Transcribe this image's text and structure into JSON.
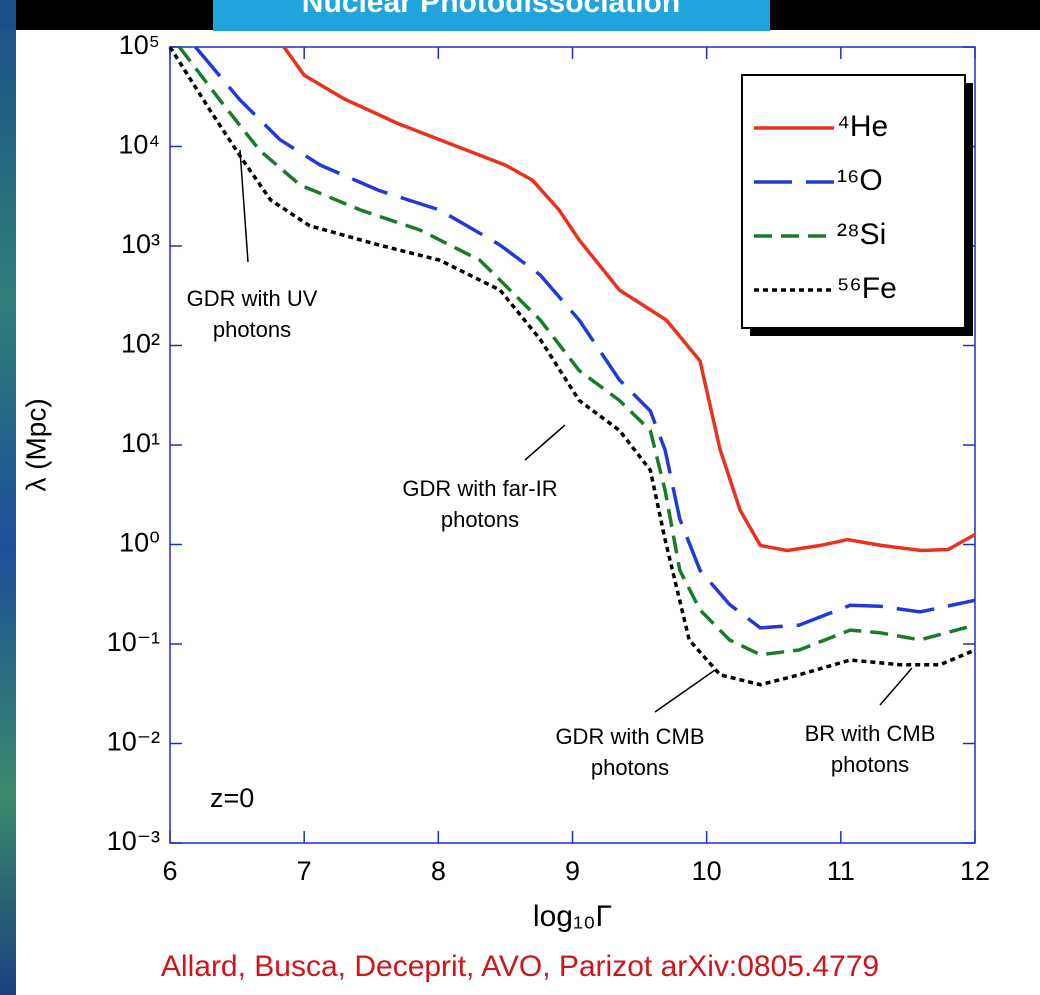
{
  "slide_title": "Nuclear Photodissociation",
  "credit": "Allard, Busca, Deceprit, AVO, Parizot arXiv:0805.4779",
  "chart_data": {
    "type": "line",
    "xlabel": "log₁₀Γ",
    "ylabel": "λ (Mpc)",
    "xlim": [
      6,
      12
    ],
    "xticks": [
      6,
      7,
      8,
      9,
      10,
      11,
      12
    ],
    "ylim": [
      0.001,
      100000
    ],
    "log_y": true,
    "yticks": [
      {
        "value": 0.001,
        "label": "10⁻³"
      },
      {
        "value": 0.01,
        "label": "10⁻²"
      },
      {
        "value": 0.1,
        "label": "10⁻¹"
      },
      {
        "value": 1,
        "label": "10⁰"
      },
      {
        "value": 10,
        "label": "10¹"
      },
      {
        "value": 100,
        "label": "10²"
      },
      {
        "value": 1000,
        "label": "10³"
      },
      {
        "value": 10000,
        "label": "10⁴"
      },
      {
        "value": 100000,
        "label": "10⁵"
      }
    ],
    "legend_position": "upper right",
    "series": [
      {
        "name": "⁴He",
        "color": "#e8321e",
        "dash": "solid",
        "x": [
          6.85,
          7.0,
          7.3,
          7.7,
          8.1,
          8.5,
          8.7,
          8.9,
          9.05,
          9.35,
          9.7,
          9.95,
          10.1,
          10.25,
          10.4,
          10.6,
          10.85,
          11.05,
          11.3,
          11.6,
          11.8,
          12.0
        ],
        "values": [
          100000,
          52000,
          30000,
          17000,
          10500,
          6500,
          4600,
          2300,
          1150,
          360,
          180,
          70,
          9,
          2.2,
          0.98,
          0.87,
          0.98,
          1.12,
          0.98,
          0.87,
          0.89,
          1.26
        ]
      },
      {
        "name": "¹⁶O",
        "color": "#2339d6",
        "dash": "long-dash",
        "x": [
          6.19,
          6.52,
          6.82,
          7.12,
          7.56,
          8.01,
          8.46,
          8.76,
          9.05,
          9.35,
          9.58,
          9.69,
          9.8,
          9.95,
          10.17,
          10.4,
          10.69,
          11.07,
          11.29,
          11.59,
          12.0
        ],
        "values": [
          100000,
          29500,
          11700,
          6500,
          3600,
          2300,
          1020,
          510,
          180,
          45,
          22,
          8.9,
          1.8,
          0.55,
          0.25,
          0.145,
          0.155,
          0.245,
          0.24,
          0.21,
          0.275
        ]
      },
      {
        "name": "²⁸Si",
        "color": "#1a7a2a",
        "dash": "dash",
        "x": [
          6.07,
          6.37,
          6.67,
          6.97,
          7.42,
          7.86,
          8.31,
          8.76,
          9.05,
          9.35,
          9.58,
          9.69,
          9.8,
          9.95,
          10.17,
          10.4,
          10.69,
          11.07,
          11.29,
          11.59,
          12.0
        ],
        "values": [
          100000,
          29500,
          9100,
          4100,
          2300,
          1450,
          720,
          180,
          56,
          28,
          14,
          3.5,
          0.55,
          0.22,
          0.11,
          0.078,
          0.087,
          0.138,
          0.13,
          0.11,
          0.155
        ]
      },
      {
        "name": "⁵⁶Fe",
        "color": "#000000",
        "dash": "dot",
        "x": [
          6.0,
          6.3,
          6.52,
          6.75,
          7.04,
          7.56,
          8.01,
          8.46,
          8.76,
          9.05,
          9.35,
          9.58,
          9.69,
          9.87,
          10.1,
          10.4,
          10.69,
          11.07,
          11.44,
          11.74,
          12.0
        ],
        "values": [
          100000,
          23000,
          8100,
          2900,
          1600,
          1020,
          720,
          360,
          115,
          28,
          14,
          5.6,
          1.12,
          0.11,
          0.049,
          0.039,
          0.049,
          0.069,
          0.062,
          0.062,
          0.087
        ]
      }
    ],
    "annotations": [
      {
        "lines": [
          "GDR with UV",
          "photons"
        ]
      },
      {
        "lines": [
          "GDR with far-IR",
          "photons"
        ]
      },
      {
        "lines": [
          "GDR with CMB",
          "photons"
        ]
      },
      {
        "lines": [
          "BR with CMB",
          "photons"
        ]
      },
      {
        "lines": [
          "z=0"
        ]
      }
    ]
  }
}
